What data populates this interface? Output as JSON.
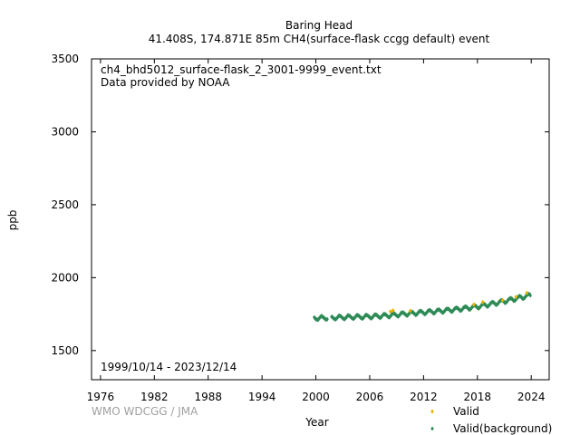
{
  "chart_data": {
    "type": "scatter",
    "title": "Baring Head",
    "subtitle": "41.408S, 174.871E 85m    CH4(surface-flask ccgg default) event",
    "file_label": "ch4_bhd5012_surface-flask_2_3001-9999_event.txt",
    "provider_label": "Data provided by NOAA",
    "date_range_label": "1999/10/14 - 2023/12/14",
    "credit": "WMO WDCGG / JMA",
    "xlabel": "Year",
    "ylabel": "ppb",
    "xlim": [
      1975,
      2026
    ],
    "ylim": [
      1300,
      3500
    ],
    "xticks": [
      "1976",
      "1982",
      "1988",
      "1994",
      "2000",
      "2006",
      "2012",
      "2018",
      "2024"
    ],
    "yticks": [
      "1500",
      "2000",
      "2500",
      "3000",
      "3500"
    ],
    "legend_position": "bottom-right",
    "series": [
      {
        "name": "Valid",
        "color": "#e8b000",
        "marker": "diamond",
        "x": [
          2008.3,
          2008.6,
          2010.5,
          2017.6,
          2018.6,
          2020.8,
          2022.3,
          2023.5
        ],
        "y": [
          1768,
          1775,
          1772,
          1815,
          1832,
          1845,
          1868,
          1895
        ]
      },
      {
        "name": "Valid(background)",
        "color": "#2e8b57",
        "marker": "diamond",
        "trend": {
          "x": [
            1999.8,
            2002,
            2004,
            2006,
            2008,
            2010,
            2012,
            2014,
            2016,
            2018,
            2020,
            2022,
            2023.95
          ],
          "y": [
            1722,
            1726,
            1730,
            1733,
            1740,
            1752,
            1762,
            1772,
            1785,
            1801,
            1825,
            1852,
            1880
          ]
        },
        "seasonal_amplitude": 12,
        "gaps": [
          [
            2001.3,
            2001.7
          ]
        ]
      }
    ]
  }
}
